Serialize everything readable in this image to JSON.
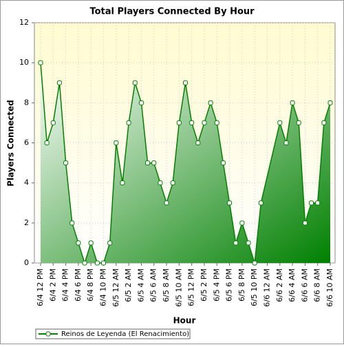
{
  "chart_data": {
    "type": "area",
    "title": "Total Players Connected By Hour",
    "xlabel": "Hour",
    "ylabel": "Players Connected",
    "x": [
      0,
      1,
      2,
      3,
      4,
      5,
      6,
      7,
      8,
      9,
      10,
      11,
      12,
      13,
      14,
      15,
      16,
      17,
      18,
      19,
      20,
      21,
      22,
      23,
      24,
      25,
      26,
      27,
      28,
      29,
      30,
      31,
      32,
      33,
      34,
      35,
      38,
      39,
      40,
      41,
      42,
      43,
      44,
      45,
      46
    ],
    "series": [
      {
        "name": "Reinos de Leyenda (El Renacimiento)",
        "color": "#008000",
        "values": [
          10,
          6,
          7,
          9,
          5,
          2,
          1,
          0,
          1,
          0,
          0,
          1,
          6,
          4,
          7,
          9,
          8,
          5,
          5,
          4,
          3,
          4,
          7,
          9,
          7,
          6,
          7,
          8,
          7,
          5,
          3,
          1,
          2,
          1,
          0,
          3,
          7,
          6,
          8,
          7,
          2,
          3,
          3,
          7,
          8
        ]
      }
    ],
    "xlim": [
      0,
      46
    ],
    "xticks": [
      {
        "value": 0,
        "label": "6/4 12 PM"
      },
      {
        "value": 2,
        "label": "6/4 2 PM"
      },
      {
        "value": 4,
        "label": "6/4 4 PM"
      },
      {
        "value": 6,
        "label": "6/4 6 PM"
      },
      {
        "value": 8,
        "label": "6/4 8 PM"
      },
      {
        "value": 10,
        "label": "6/4 10 PM"
      },
      {
        "value": 12,
        "label": "6/5 12 AM"
      },
      {
        "value": 14,
        "label": "6/5 2 AM"
      },
      {
        "value": 16,
        "label": "6/5 4 AM"
      },
      {
        "value": 18,
        "label": "6/5 6 AM"
      },
      {
        "value": 20,
        "label": "6/5 8 AM"
      },
      {
        "value": 22,
        "label": "6/5 10 AM"
      },
      {
        "value": 24,
        "label": "6/5 12 PM"
      },
      {
        "value": 26,
        "label": "6/5 2 PM"
      },
      {
        "value": 28,
        "label": "6/5 4 PM"
      },
      {
        "value": 30,
        "label": "6/5 6 PM"
      },
      {
        "value": 32,
        "label": "6/5 8 PM"
      },
      {
        "value": 34,
        "label": "6/5 10 PM"
      },
      {
        "value": 36,
        "label": "6/6 12 AM"
      },
      {
        "value": 38,
        "label": "6/6 2 AM"
      },
      {
        "value": 40,
        "label": "6/6 4 AM"
      },
      {
        "value": 42,
        "label": "6/6 6 AM"
      },
      {
        "value": 44,
        "label": "6/6 8 AM"
      },
      {
        "value": 46,
        "label": "6/6 10 AM"
      }
    ],
    "ylim": [
      0,
      12
    ],
    "yticks": [
      0,
      2,
      4,
      6,
      8,
      10,
      12
    ],
    "grid": true
  }
}
